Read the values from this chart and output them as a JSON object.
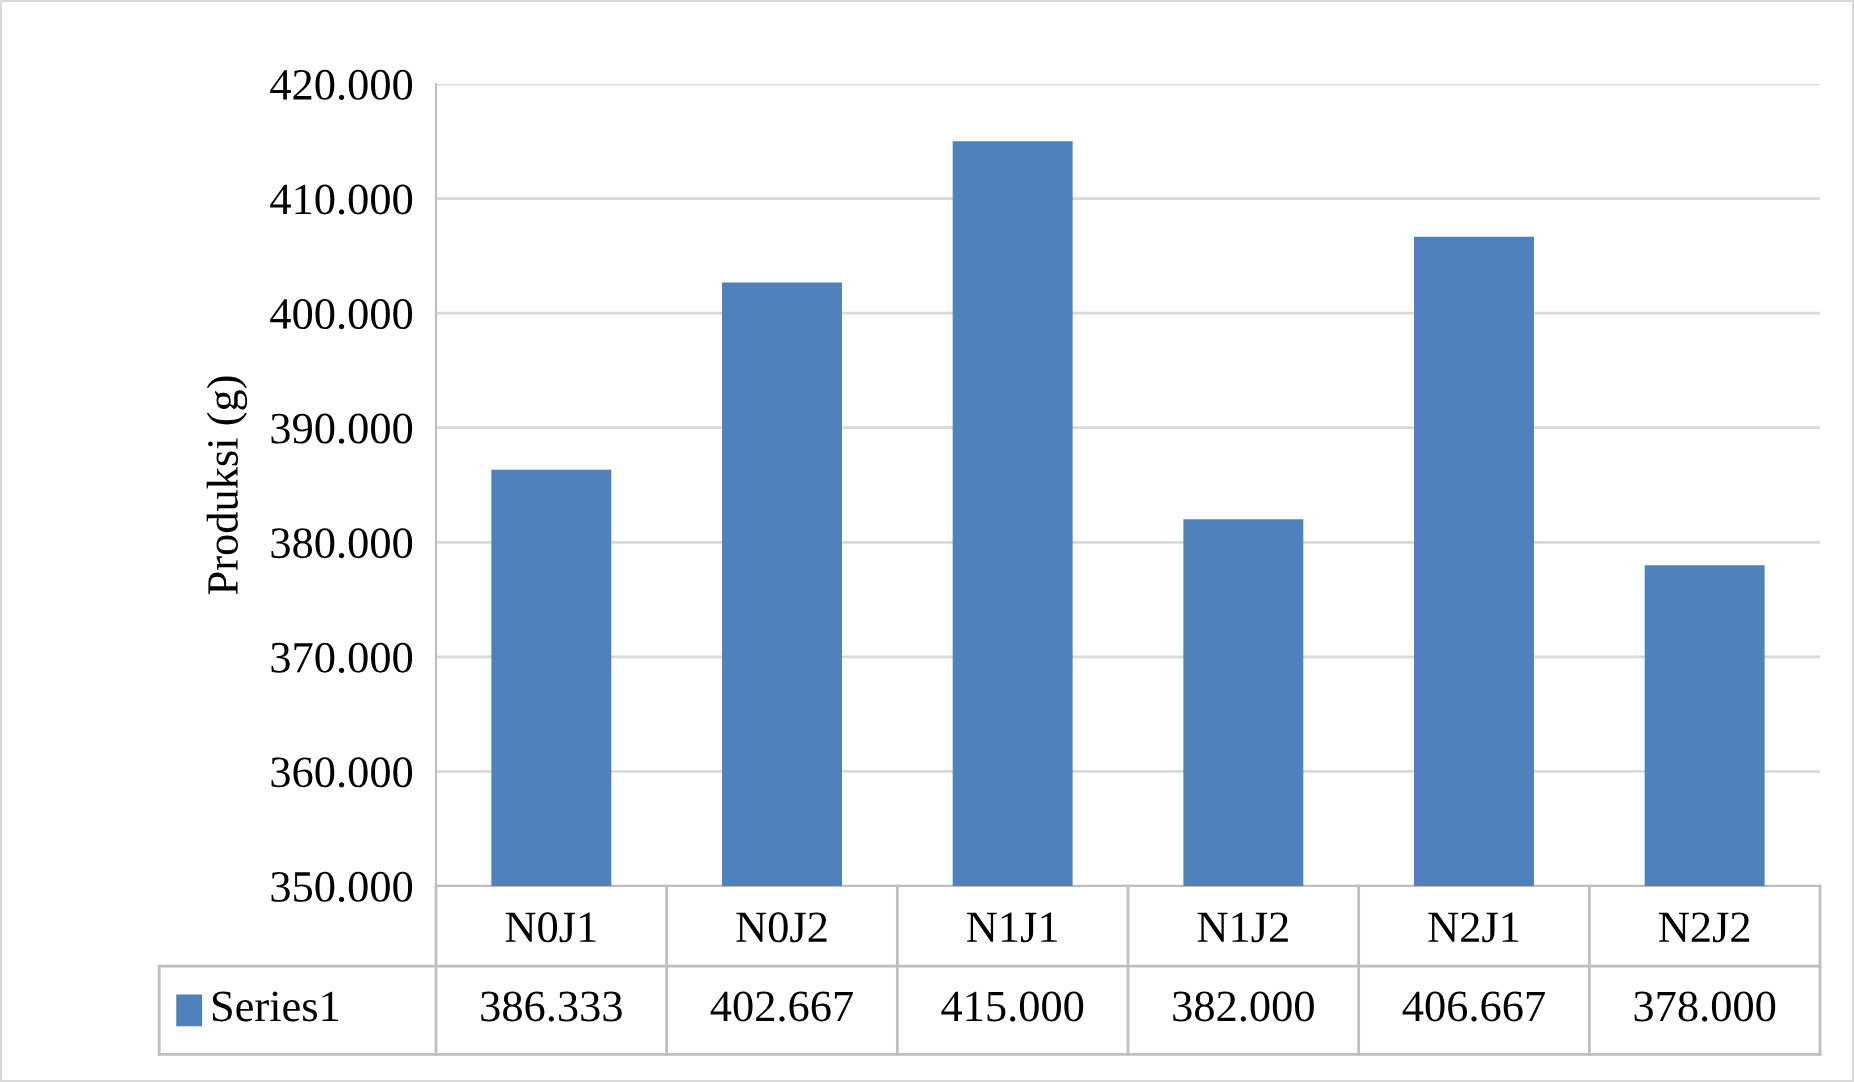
{
  "chart_data": {
    "type": "bar",
    "ylabel": "Produksi (g)",
    "categories": [
      "N0J1",
      "N0J2",
      "N1J1",
      "N1J2",
      "N2J1",
      "N2J2"
    ],
    "series": [
      {
        "name": "Series1",
        "color": "#4f81bd",
        "values": [
          386.333,
          402.667,
          415.0,
          382.0,
          406.667,
          378.0
        ],
        "value_labels": [
          "386.333",
          "402.667",
          "415.000",
          "382.000",
          "406.667",
          "378.000"
        ]
      }
    ],
    "ylim": [
      350,
      420
    ],
    "yticks": [
      {
        "value": 350,
        "label": "350.000"
      },
      {
        "value": 360,
        "label": "360.000"
      },
      {
        "value": 370,
        "label": "370.000"
      },
      {
        "value": 380,
        "label": "380.000"
      },
      {
        "value": 390,
        "label": "390.000"
      },
      {
        "value": 400,
        "label": "400.000"
      },
      {
        "value": 410,
        "label": "410.000"
      },
      {
        "value": 420,
        "label": "420.000"
      }
    ],
    "grid": "y"
  }
}
